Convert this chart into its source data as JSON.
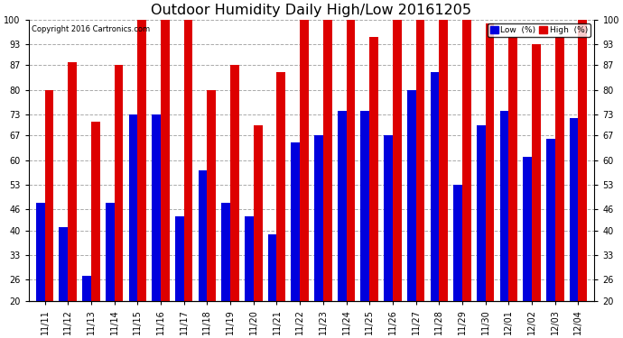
{
  "title": "Outdoor Humidity Daily High/Low 20161205",
  "copyright": "Copyright 2016 Cartronics.com",
  "legend_low": "Low  (%)",
  "legend_high": "High  (%)",
  "dates": [
    "11/11",
    "11/12",
    "11/13",
    "11/14",
    "11/15",
    "11/16",
    "11/17",
    "11/18",
    "11/19",
    "11/20",
    "11/21",
    "11/22",
    "11/23",
    "11/24",
    "11/25",
    "11/26",
    "11/27",
    "11/28",
    "11/29",
    "11/30",
    "12/01",
    "12/02",
    "12/03",
    "12/04"
  ],
  "high": [
    80,
    88,
    71,
    87,
    100,
    100,
    100,
    80,
    87,
    70,
    85,
    100,
    100,
    100,
    95,
    100,
    100,
    100,
    100,
    99,
    95,
    93,
    95,
    100
  ],
  "low": [
    48,
    41,
    27,
    48,
    73,
    73,
    44,
    57,
    48,
    44,
    39,
    65,
    67,
    74,
    74,
    67,
    80,
    85,
    53,
    70,
    74,
    61,
    66,
    72
  ],
  "low_color": "#0000dd",
  "high_color": "#dd0000",
  "bg_color": "#ffffff",
  "ylim_min": 20,
  "ylim_max": 100,
  "yticks": [
    20,
    26,
    33,
    40,
    46,
    53,
    60,
    67,
    73,
    80,
    87,
    93,
    100
  ],
  "bar_width": 0.38,
  "grid_color": "#aaaaaa",
  "title_fontsize": 11.5,
  "tick_fontsize": 7,
  "fig_width": 6.9,
  "fig_height": 3.75,
  "dpi": 100
}
